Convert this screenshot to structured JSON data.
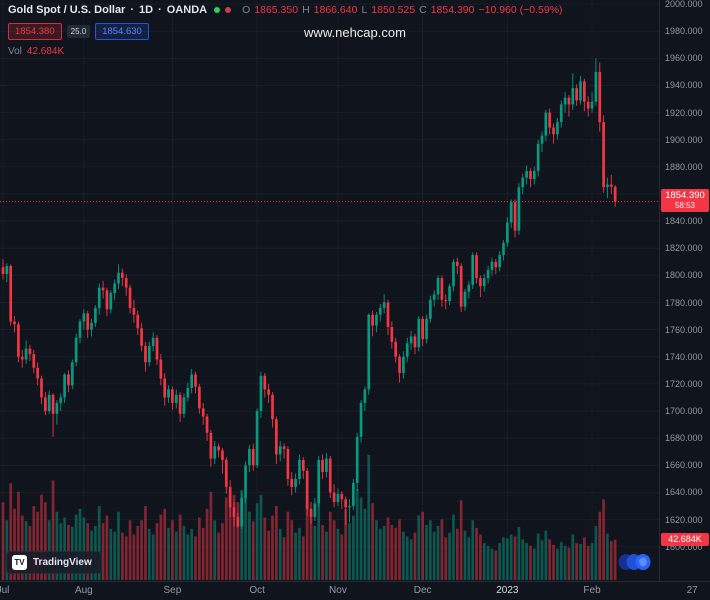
{
  "header": {
    "symbol": "Gold Spot / U.S. Dollar",
    "sep": "·",
    "interval": "1D",
    "exchange": "OANDA",
    "ohlc": {
      "o_label": "O",
      "o_value": "1865.350",
      "h_label": "H",
      "h_value": "1866.640",
      "l_label": "L",
      "l_value": "1850.525",
      "c_label": "C",
      "c_value": "1854.390",
      "change": "−10.960 (−0.59%)"
    },
    "sell_price": "1854.380",
    "spread": "25.0",
    "buy_price": "1854.630",
    "vol_label": "Vol",
    "vol_value": "42.684K"
  },
  "watermark": "www.nehcap.com",
  "price_axis": {
    "last_price_label": "1854.390",
    "countdown": "58:53",
    "volume_tag": "42.684K"
  },
  "attribution": {
    "logo_text": "TV",
    "brand": "TradingView"
  },
  "chart_data": {
    "type": "candlestick",
    "title": "Gold Spot / U.S. Dollar",
    "interval": "1D",
    "exchange": "OANDA",
    "price_top": 2003,
    "price_bottom": 1574,
    "price_decimals": 3,
    "y_ticks": [
      2000,
      1980,
      1960,
      1940,
      1920,
      1900,
      1880,
      1860,
      1840,
      1820,
      1800,
      1780,
      1760,
      1740,
      1720,
      1700,
      1680,
      1660,
      1640,
      1620,
      1600
    ],
    "x_ticks": [
      {
        "label": "Jul",
        "i": 0
      },
      {
        "label": "Aug",
        "i": 21
      },
      {
        "label": "Sep",
        "i": 44
      },
      {
        "label": "Oct",
        "i": 66
      },
      {
        "label": "Nov",
        "i": 87
      },
      {
        "label": "Dec",
        "i": 109
      },
      {
        "label": "2023",
        "i": 131,
        "major": true
      },
      {
        "label": "Feb",
        "i": 153
      },
      {
        "label": "27",
        "i": 179
      }
    ],
    "last_price": 1854.39,
    "last_volume": 42.684,
    "vol_max": 135,
    "colors": {
      "up": "#089981",
      "down": "#f23645",
      "accent": "#2962ff"
    },
    "candles": [
      [
        1806,
        1812,
        1797,
        1801,
        82
      ],
      [
        1801,
        1809,
        1795,
        1807,
        63
      ],
      [
        1807,
        1808,
        1763,
        1766,
        102
      ],
      [
        1766,
        1770,
        1758,
        1764,
        75
      ],
      [
        1764,
        1766,
        1736,
        1740,
        93
      ],
      [
        1740,
        1745,
        1732,
        1738,
        68
      ],
      [
        1738,
        1752,
        1735,
        1746,
        62
      ],
      [
        1746,
        1749,
        1737,
        1742,
        57
      ],
      [
        1742,
        1745,
        1728,
        1732,
        78
      ],
      [
        1732,
        1736,
        1719,
        1724,
        72
      ],
      [
        1724,
        1726,
        1705,
        1710,
        90
      ],
      [
        1710,
        1714,
        1697,
        1700,
        82
      ],
      [
        1700,
        1715,
        1698,
        1712,
        63
      ],
      [
        1712,
        1713,
        1681,
        1698,
        105
      ],
      [
        1698,
        1708,
        1690,
        1706,
        72
      ],
      [
        1706,
        1713,
        1700,
        1710,
        60
      ],
      [
        1710,
        1728,
        1706,
        1727,
        66
      ],
      [
        1727,
        1730,
        1714,
        1719,
        58
      ],
      [
        1719,
        1738,
        1716,
        1736,
        56
      ],
      [
        1736,
        1757,
        1733,
        1754,
        69
      ],
      [
        1754,
        1768,
        1750,
        1766,
        75
      ],
      [
        1766,
        1775,
        1760,
        1772,
        66
      ],
      [
        1772,
        1774,
        1754,
        1760,
        60
      ],
      [
        1760,
        1768,
        1755,
        1765,
        52
      ],
      [
        1765,
        1778,
        1762,
        1776,
        57
      ],
      [
        1776,
        1794,
        1771,
        1791,
        78
      ],
      [
        1791,
        1796,
        1783,
        1789,
        60
      ],
      [
        1789,
        1791,
        1770,
        1775,
        68
      ],
      [
        1775,
        1789,
        1772,
        1787,
        54
      ],
      [
        1787,
        1797,
        1782,
        1794,
        51
      ],
      [
        1794,
        1808,
        1790,
        1802,
        72
      ],
      [
        1802,
        1805,
        1792,
        1798,
        50
      ],
      [
        1798,
        1801,
        1785,
        1791,
        46
      ],
      [
        1791,
        1793,
        1772,
        1776,
        63
      ],
      [
        1776,
        1782,
        1765,
        1771,
        48
      ],
      [
        1771,
        1774,
        1756,
        1761,
        57
      ],
      [
        1761,
        1765,
        1744,
        1748,
        63
      ],
      [
        1748,
        1751,
        1729,
        1736,
        78
      ],
      [
        1736,
        1751,
        1733,
        1748,
        54
      ],
      [
        1748,
        1758,
        1744,
        1754,
        48
      ],
      [
        1754,
        1756,
        1734,
        1738,
        60
      ],
      [
        1738,
        1742,
        1719,
        1724,
        69
      ],
      [
        1724,
        1728,
        1704,
        1710,
        75
      ],
      [
        1710,
        1719,
        1706,
        1716,
        55
      ],
      [
        1716,
        1718,
        1701,
        1706,
        63
      ],
      [
        1706,
        1716,
        1702,
        1712,
        51
      ],
      [
        1712,
        1714,
        1692,
        1698,
        69
      ],
      [
        1698,
        1713,
        1695,
        1710,
        57
      ],
      [
        1710,
        1721,
        1707,
        1717,
        48
      ],
      [
        1717,
        1731,
        1713,
        1727,
        54
      ],
      [
        1727,
        1729,
        1713,
        1718,
        46
      ],
      [
        1718,
        1720,
        1698,
        1702,
        66
      ],
      [
        1702,
        1706,
        1690,
        1696,
        55
      ],
      [
        1696,
        1698,
        1678,
        1684,
        75
      ],
      [
        1684,
        1686,
        1659,
        1665,
        93
      ],
      [
        1665,
        1678,
        1661,
        1674,
        63
      ],
      [
        1674,
        1676,
        1666,
        1671,
        50
      ],
      [
        1671,
        1673,
        1654,
        1664,
        60
      ],
      [
        1664,
        1666,
        1639,
        1644,
        87
      ],
      [
        1644,
        1649,
        1622,
        1629,
        96
      ],
      [
        1629,
        1633,
        1615,
        1622,
        90
      ],
      [
        1622,
        1625,
        1614,
        1615,
        82
      ],
      [
        1615,
        1640,
        1613,
        1636,
        95
      ],
      [
        1636,
        1663,
        1632,
        1660,
        87
      ],
      [
        1660,
        1675,
        1655,
        1672,
        72
      ],
      [
        1672,
        1676,
        1656,
        1660,
        62
      ],
      [
        1660,
        1702,
        1658,
        1700,
        81
      ],
      [
        1700,
        1729,
        1695,
        1726,
        90
      ],
      [
        1726,
        1728,
        1710,
        1716,
        66
      ],
      [
        1716,
        1720,
        1706,
        1712,
        52
      ],
      [
        1712,
        1714,
        1688,
        1694,
        68
      ],
      [
        1694,
        1696,
        1661,
        1668,
        78
      ],
      [
        1668,
        1678,
        1663,
        1674,
        54
      ],
      [
        1674,
        1676,
        1665,
        1672,
        45
      ],
      [
        1672,
        1674,
        1645,
        1650,
        72
      ],
      [
        1650,
        1655,
        1638,
        1644,
        63
      ],
      [
        1644,
        1654,
        1640,
        1650,
        50
      ],
      [
        1650,
        1668,
        1646,
        1664,
        55
      ],
      [
        1664,
        1666,
        1650,
        1656,
        46
      ],
      [
        1656,
        1658,
        1623,
        1628,
        80
      ],
      [
        1628,
        1633,
        1617,
        1622,
        70
      ],
      [
        1622,
        1636,
        1619,
        1632,
        57
      ],
      [
        1632,
        1667,
        1629,
        1664,
        81
      ],
      [
        1664,
        1668,
        1650,
        1655,
        58
      ],
      [
        1655,
        1669,
        1651,
        1665,
        51
      ],
      [
        1665,
        1667,
        1636,
        1640,
        72
      ],
      [
        1640,
        1646,
        1629,
        1633,
        63
      ],
      [
        1633,
        1643,
        1630,
        1639,
        54
      ],
      [
        1639,
        1641,
        1628,
        1635,
        48
      ],
      [
        1635,
        1637,
        1616,
        1629,
        75
      ],
      [
        1629,
        1635,
        1618,
        1630,
        60
      ],
      [
        1630,
        1650,
        1627,
        1647,
        68
      ],
      [
        1647,
        1684,
        1641,
        1681,
        96
      ],
      [
        1681,
        1708,
        1677,
        1706,
        87
      ],
      [
        1706,
        1718,
        1700,
        1716,
        75
      ],
      [
        1716,
        1772,
        1712,
        1771,
        132
      ],
      [
        1771,
        1774,
        1755,
        1763,
        81
      ],
      [
        1763,
        1773,
        1758,
        1771,
        63
      ],
      [
        1771,
        1779,
        1766,
        1776,
        54
      ],
      [
        1776,
        1786,
        1772,
        1780,
        57
      ],
      [
        1780,
        1782,
        1756,
        1762,
        66
      ],
      [
        1762,
        1766,
        1746,
        1751,
        58
      ],
      [
        1751,
        1754,
        1736,
        1740,
        55
      ],
      [
        1740,
        1742,
        1721,
        1728,
        64
      ],
      [
        1728,
        1744,
        1724,
        1740,
        51
      ],
      [
        1740,
        1754,
        1736,
        1750,
        46
      ],
      [
        1750,
        1759,
        1745,
        1755,
        43
      ],
      [
        1755,
        1757,
        1742,
        1747,
        50
      ],
      [
        1747,
        1770,
        1744,
        1768,
        68
      ],
      [
        1768,
        1770,
        1748,
        1753,
        72
      ],
      [
        1753,
        1771,
        1750,
        1768,
        58
      ],
      [
        1768,
        1785,
        1765,
        1782,
        63
      ],
      [
        1782,
        1789,
        1777,
        1786,
        51
      ],
      [
        1786,
        1800,
        1782,
        1798,
        57
      ],
      [
        1798,
        1800,
        1777,
        1782,
        64
      ],
      [
        1782,
        1786,
        1775,
        1781,
        45
      ],
      [
        1781,
        1794,
        1778,
        1792,
        50
      ],
      [
        1792,
        1812,
        1788,
        1810,
        69
      ],
      [
        1810,
        1813,
        1801,
        1807,
        54
      ],
      [
        1807,
        1809,
        1773,
        1777,
        84
      ],
      [
        1777,
        1790,
        1774,
        1788,
        52
      ],
      [
        1788,
        1796,
        1783,
        1793,
        45
      ],
      [
        1793,
        1817,
        1790,
        1815,
        63
      ],
      [
        1815,
        1817,
        1794,
        1798,
        55
      ],
      [
        1798,
        1800,
        1784,
        1792,
        48
      ],
      [
        1792,
        1801,
        1788,
        1798,
        39
      ],
      [
        1798,
        1807,
        1794,
        1804,
        36
      ],
      [
        1804,
        1813,
        1800,
        1810,
        33
      ],
      [
        1810,
        1812,
        1801,
        1806,
        31
      ],
      [
        1806,
        1818,
        1803,
        1815,
        39
      ],
      [
        1815,
        1826,
        1811,
        1824,
        45
      ],
      [
        1824,
        1843,
        1821,
        1839,
        44
      ],
      [
        1839,
        1856,
        1835,
        1854,
        48
      ],
      [
        1854,
        1856,
        1828,
        1833,
        46
      ],
      [
        1833,
        1868,
        1830,
        1865,
        56
      ],
      [
        1865,
        1875,
        1860,
        1872,
        43
      ],
      [
        1872,
        1881,
        1867,
        1877,
        39
      ],
      [
        1877,
        1879,
        1865,
        1871,
        36
      ],
      [
        1871,
        1880,
        1867,
        1877,
        33
      ],
      [
        1877,
        1900,
        1873,
        1897,
        49
      ],
      [
        1897,
        1906,
        1891,
        1903,
        42
      ],
      [
        1903,
        1922,
        1899,
        1920,
        52
      ],
      [
        1920,
        1923,
        1904,
        1909,
        43
      ],
      [
        1909,
        1912,
        1897,
        1904,
        37
      ],
      [
        1904,
        1916,
        1900,
        1913,
        33
      ],
      [
        1913,
        1929,
        1909,
        1926,
        40
      ],
      [
        1926,
        1935,
        1920,
        1931,
        36
      ],
      [
        1931,
        1933,
        1917,
        1926,
        34
      ],
      [
        1926,
        1949,
        1922,
        1938,
        48
      ],
      [
        1938,
        1941,
        1925,
        1929,
        39
      ],
      [
        1929,
        1947,
        1926,
        1943,
        38
      ],
      [
        1943,
        1945,
        1921,
        1928,
        45
      ],
      [
        1928,
        1932,
        1917,
        1923,
        36
      ],
      [
        1923,
        1935,
        1920,
        1928,
        39
      ],
      [
        1928,
        1960,
        1925,
        1950,
        57
      ],
      [
        1950,
        1957,
        1906,
        1913,
        72
      ],
      [
        1913,
        1918,
        1861,
        1865,
        85
      ],
      [
        1865,
        1872,
        1857,
        1867,
        49
      ],
      [
        1867,
        1874,
        1860,
        1865.35,
        41
      ],
      [
        1865.35,
        1866.64,
        1850.525,
        1854.39,
        42.684
      ]
    ]
  }
}
